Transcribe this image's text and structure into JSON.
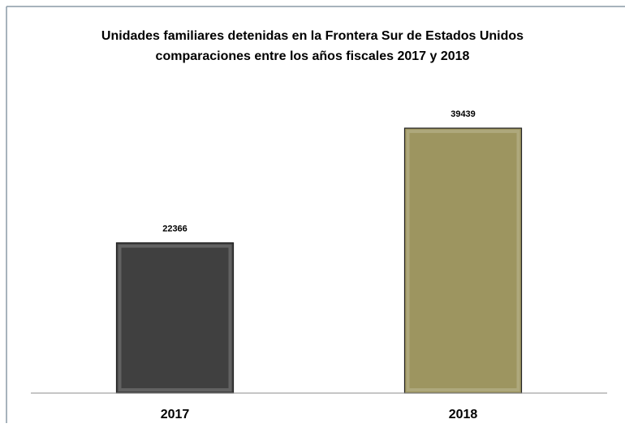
{
  "chart_data": {
    "type": "bar",
    "title": "Unidades familiares detenidas en la Frontera Sur de Estados Unidos",
    "subtitle": "comparaciones entre los años fiscales 2017 y 2018",
    "categories": [
      "2017",
      "2018"
    ],
    "values": [
      22366,
      39439
    ],
    "colors": [
      "#404040",
      "#9d9560"
    ],
    "ylim": [
      0,
      45000
    ]
  }
}
